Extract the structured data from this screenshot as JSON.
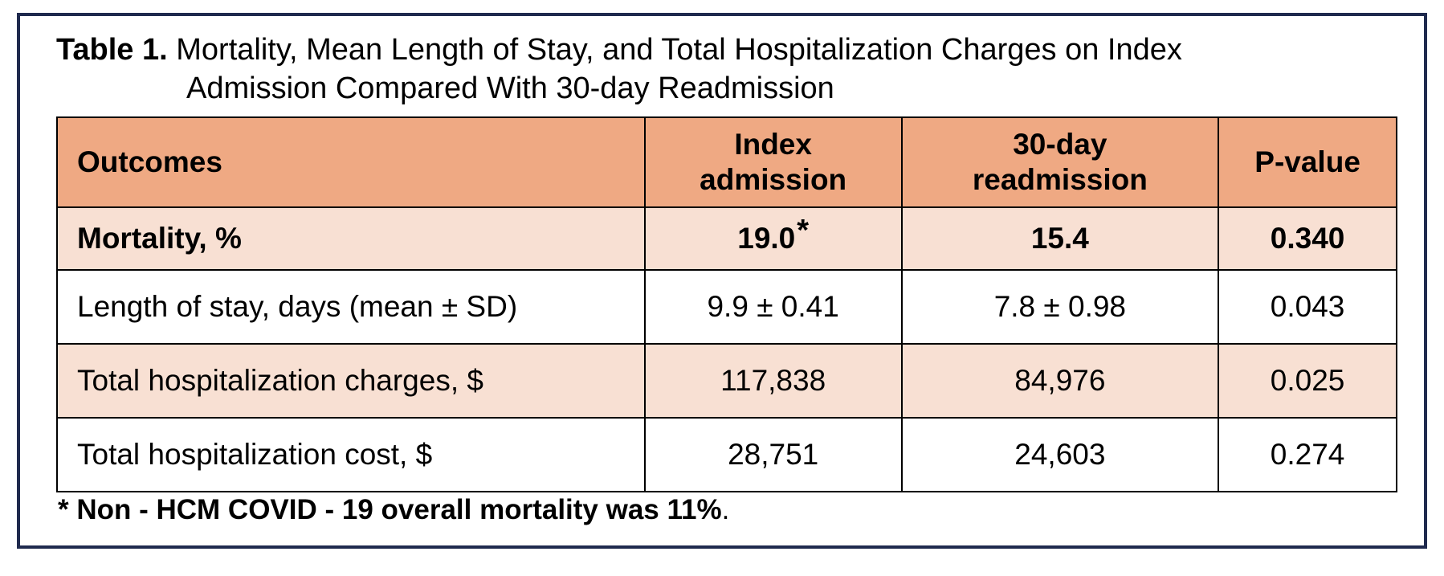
{
  "caption": {
    "label": "Table 1.",
    "text_line1": "Mortality, Mean Length of Stay, and Total Hospitalization Charges on Index",
    "text_line2": "Admission Compared With 30-day Readmission"
  },
  "table": {
    "headers": {
      "outcomes": "Outcomes",
      "index_line1": "Index",
      "index_line2": "admission",
      "readmit_line1": "30-day",
      "readmit_line2": "readmission",
      "pvalue": "P-value"
    },
    "rows": [
      {
        "outcome": "Mortality, %",
        "index": "19.0",
        "index_marker": "*",
        "readmission": "15.4",
        "pvalue": "0.340"
      },
      {
        "outcome": "Length of stay, days (mean ± SD)",
        "index": "9.9 ± 0.41",
        "readmission": "7.8 ± 0.98",
        "pvalue": "0.043"
      },
      {
        "outcome": "Total hospitalization charges, $",
        "index": "117,838",
        "readmission": "84,976",
        "pvalue": "0.025"
      },
      {
        "outcome": "Total hospitalization cost, $",
        "index": "28,751",
        "readmission": "24,603",
        "pvalue": "0.274"
      }
    ]
  },
  "footnote": {
    "text": "* Non - HCM COVID - 19 overall mortality was 11%",
    "period": "."
  },
  "colors": {
    "header_bg": "#efa983",
    "shaded_row_bg": "#f8e0d3",
    "frame_border": "#1f2a4e"
  }
}
